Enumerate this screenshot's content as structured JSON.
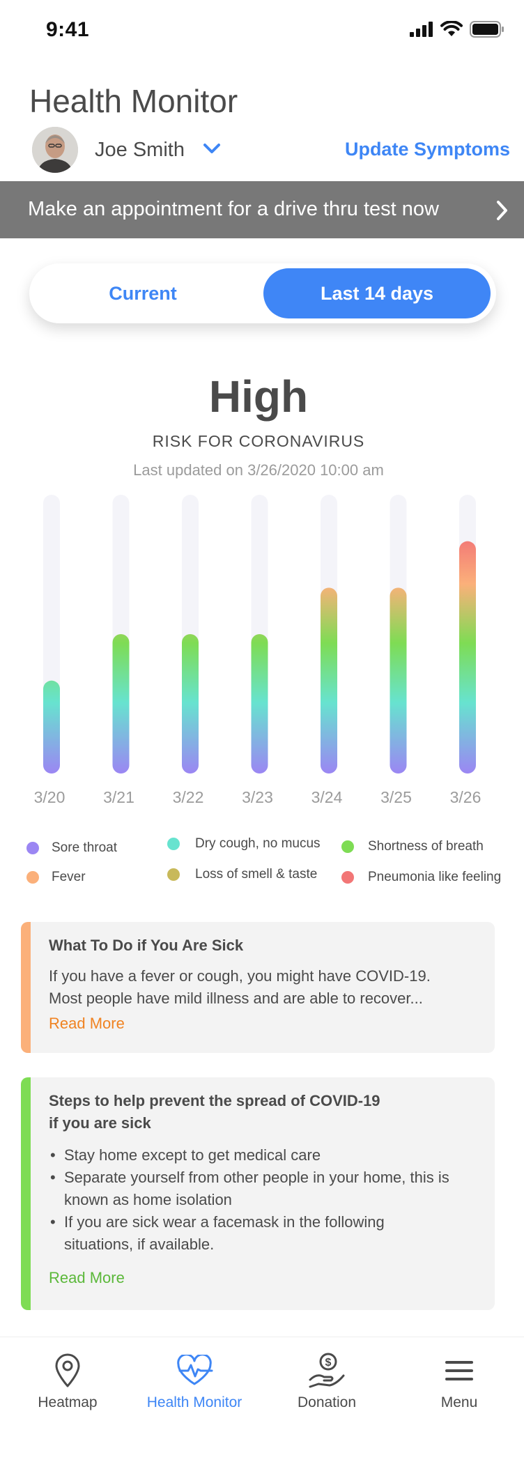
{
  "status_bar": {
    "time": "9:41"
  },
  "header": {
    "title": "Health Monitor",
    "user_name": "Joe Smith",
    "update_label": "Update Symptoms"
  },
  "banner": {
    "text": "Make an appointment for a drive thru test now"
  },
  "toggle": {
    "current_label": "Current",
    "last_label": "Last 14 days",
    "selected": "Last 14 days"
  },
  "risk": {
    "level": "High",
    "subtitle": "RISK FOR CORONAVIRUS",
    "updated": "Last updated on 3/26/2020 10:00 am"
  },
  "chart_data": {
    "type": "bar",
    "categories": [
      "3/20",
      "3/21",
      "3/22",
      "3/23",
      "3/24",
      "3/25",
      "3/26"
    ],
    "values": [
      2,
      3,
      3,
      3,
      4,
      4,
      5
    ],
    "ylim": [
      0,
      6
    ],
    "grid": false,
    "legend": "bottom"
  },
  "legend": {
    "items": [
      {
        "label": "Sore throat",
        "color": "#9b86f3"
      },
      {
        "label": "Fever",
        "color": "#fbb07a"
      },
      {
        "label": "Dry cough, no mucus",
        "color": "#67e3cf"
      },
      {
        "label": "Loss of smell & taste",
        "color": "#c8b95a"
      },
      {
        "label": "Shortness of breath",
        "color": "#7edc54"
      },
      {
        "label": "Pneumonia like feeling",
        "color": "#f27676"
      }
    ]
  },
  "cards": [
    {
      "title": "What To Do if You Are Sick",
      "body_lines": [
        "If you have a fever or cough, you might have COVID-19.",
        "Most people have mild illness and are able to recover..."
      ],
      "link": "Read More",
      "accent": "#fbb07a",
      "link_color": "#f08322"
    },
    {
      "title_lines": [
        "Steps to help prevent the spread of COVID-19",
        "if you are sick"
      ],
      "bullets": [
        [
          "Stay home except to get medical care"
        ],
        [
          "Separate yourself from other people in your home, this is",
          "known as home isolation"
        ],
        [
          "If you are sick wear a facemask in the following",
          "situations, if available."
        ]
      ],
      "link": "Read More",
      "accent": "#7edc54",
      "link_color": "#5bb83a"
    }
  ],
  "tabbar": {
    "items": [
      {
        "label": "Heatmap",
        "icon": "map-pin-icon"
      },
      {
        "label": "Health Monitor",
        "icon": "heart-pulse-icon"
      },
      {
        "label": "Donation",
        "icon": "donation-hand-icon"
      },
      {
        "label": "Menu",
        "icon": "menu-icon"
      }
    ],
    "active": "Health Monitor"
  }
}
